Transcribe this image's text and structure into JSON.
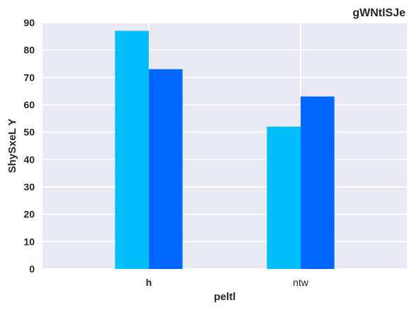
{
  "chart_data": {
    "type": "bar",
    "title": "gWNtlSJe",
    "xlabel": "peltl",
    "ylabel": "ShySxeL Y",
    "categories": [
      "h",
      "ntw"
    ],
    "series": [
      {
        "values": [
          87,
          52
        ],
        "color": "#00BFFF"
      },
      {
        "values": [
          73,
          63
        ],
        "color": "#0066FF"
      }
    ],
    "ylim": [
      0,
      90
    ],
    "yticks": [
      0,
      10,
      20,
      30,
      40,
      50,
      60,
      70,
      80,
      90
    ],
    "grid": true,
    "legend": "none",
    "background_color": "#E8E9F2",
    "grid_color": "#FFFFFF"
  }
}
